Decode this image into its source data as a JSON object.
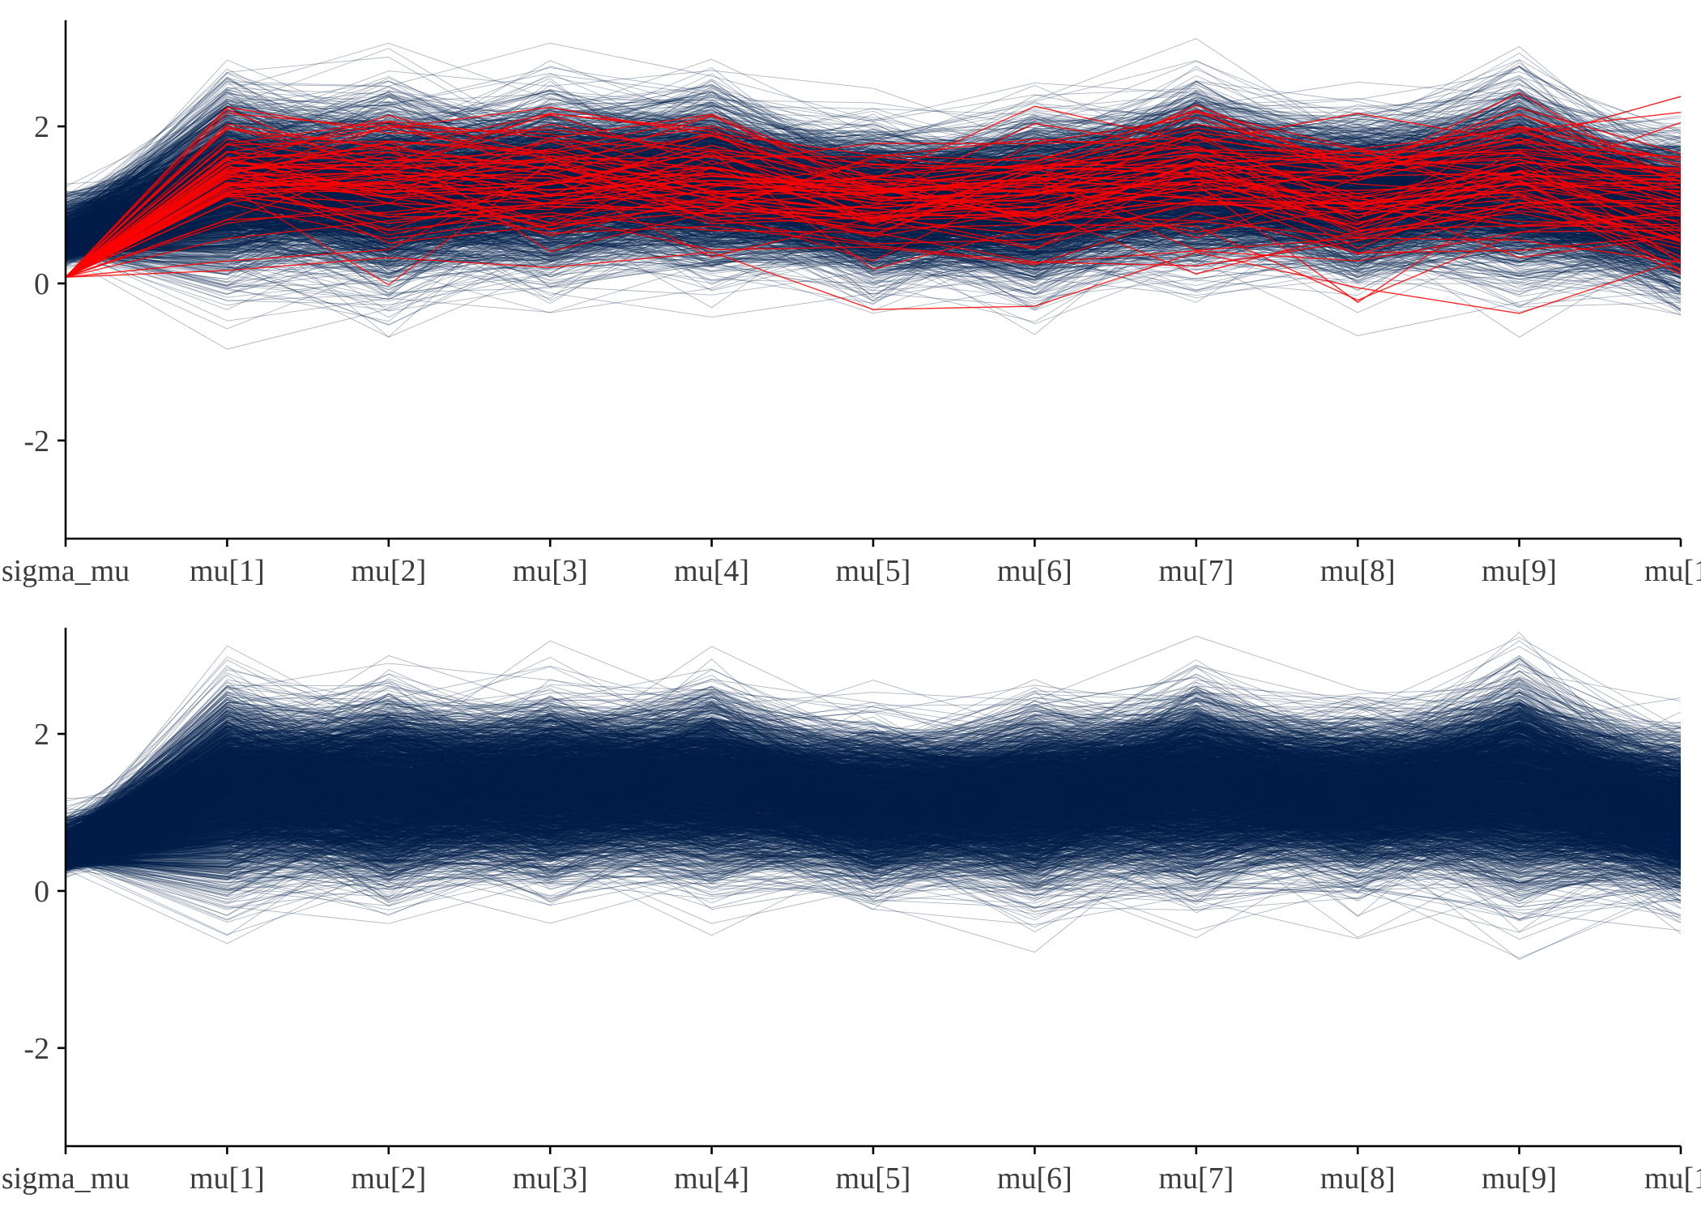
{
  "chart_data": [
    {
      "type": "line",
      "kind": "parallel-coordinates",
      "categories": [
        "sigma_mu",
        "mu[1]",
        "mu[2]",
        "mu[3]",
        "mu[4]",
        "mu[5]",
        "mu[6]",
        "mu[7]",
        "mu[8]",
        "mu[9]",
        "mu[1"
      ],
      "yticks": [
        "2",
        "0",
        "-2"
      ],
      "ylim": [
        -3.25,
        3.3
      ],
      "grid": false,
      "legend": "none",
      "series": [
        {
          "role": "posterior draws",
          "color": "#011f4b",
          "lines": 1800,
          "mean": [
            0.5,
            1.25,
            1.15,
            1.25,
            1.3,
            1.0,
            1.05,
            1.35,
            1.1,
            1.3,
            0.85
          ],
          "sd": [
            0.32,
            0.55,
            0.55,
            0.5,
            0.5,
            0.45,
            0.48,
            0.5,
            0.45,
            0.55,
            0.45
          ]
        },
        {
          "role": "divergent draws",
          "color": "#ff0000",
          "lines": 70,
          "start": 0.08,
          "mean": [
            0.08,
            1.35,
            1.25,
            1.3,
            1.3,
            1.0,
            1.1,
            1.3,
            1.05,
            1.3,
            1.0
          ],
          "sd": [
            0.0,
            0.45,
            0.45,
            0.45,
            0.42,
            0.38,
            0.42,
            0.45,
            0.45,
            0.5,
            0.45
          ]
        }
      ]
    },
    {
      "type": "line",
      "kind": "parallel-coordinates",
      "categories": [
        "sigma_mu",
        "mu[1]",
        "mu[2]",
        "mu[3]",
        "mu[4]",
        "mu[5]",
        "mu[6]",
        "mu[7]",
        "mu[8]",
        "mu[9]",
        "mu[1"
      ],
      "yticks": [
        "2",
        "0",
        "-2"
      ],
      "ylim": [
        -3.25,
        3.3
      ],
      "grid": false,
      "legend": "none",
      "series": [
        {
          "role": "posterior draws",
          "color": "#011f4b",
          "lines": 2600,
          "mean": [
            0.45,
            1.3,
            1.25,
            1.3,
            1.35,
            1.1,
            1.15,
            1.35,
            1.2,
            1.35,
            0.95
          ],
          "sd": [
            0.25,
            0.55,
            0.55,
            0.5,
            0.5,
            0.45,
            0.5,
            0.55,
            0.45,
            0.6,
            0.45
          ]
        }
      ]
    }
  ]
}
